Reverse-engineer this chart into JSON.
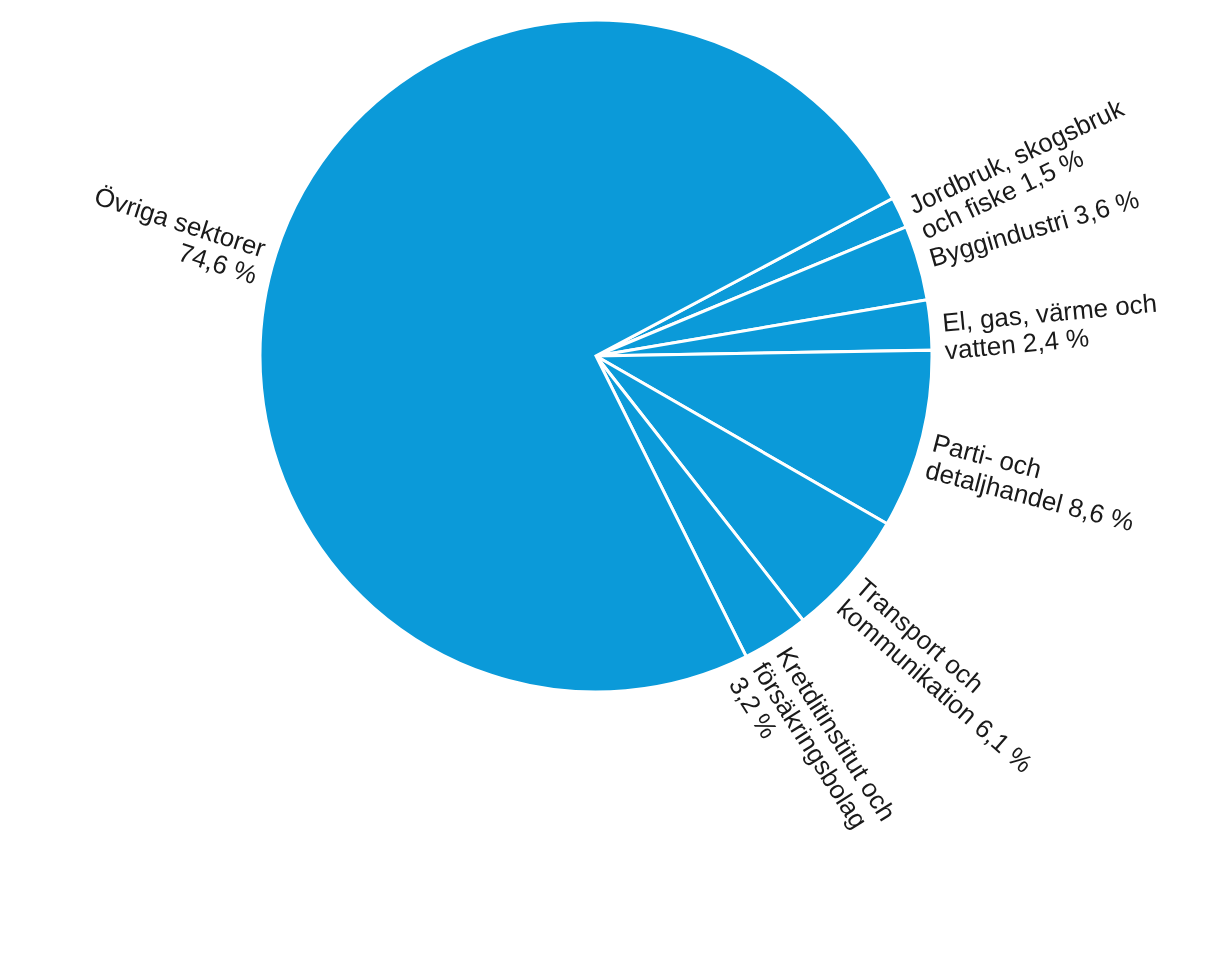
{
  "chart_data": {
    "type": "pie",
    "categories": [
      "Jordbruk, skogsbruk och fiske",
      "Byggindustri",
      "El, gas, värme och vatten",
      "Parti- och detaljhandel",
      "Transport och kommunikation",
      "Kretditinstitut och försäkringsbolag",
      "Övriga sektorer"
    ],
    "values": [
      1.5,
      3.6,
      2.4,
      8.6,
      6.1,
      3.2,
      74.6
    ],
    "value_labels": [
      "1,5 %",
      "3,6 %",
      "2,4 %",
      "8,6 %",
      "6,1 %",
      "3,2 %",
      "74,6 %"
    ],
    "colors": [
      "#0b9ad9",
      "#0b9ad9",
      "#0b9ad9",
      "#0b9ad9",
      "#0b9ad9",
      "#0b9ad9",
      "#0b9ad9"
    ]
  }
}
